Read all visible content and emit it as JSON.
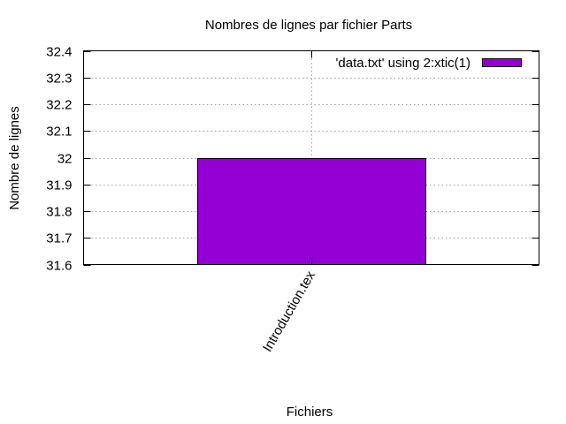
{
  "chart_data": {
    "type": "bar",
    "title": "Nombres de lignes par fichier Parts",
    "xlabel": "Fichiers",
    "ylabel": "Nombre de lignes",
    "categories": [
      "Introduction.tex"
    ],
    "series": [
      {
        "name": "'data.txt' using 2:xtic(1)",
        "values": [
          32
        ],
        "color": "#9400d3"
      }
    ],
    "ylim": [
      31.6,
      32.4
    ],
    "yticks": [
      "31.6",
      "31.7",
      "31.8",
      "31.9",
      "32",
      "32.1",
      "32.2",
      "32.3",
      "32.4"
    ],
    "grid": true,
    "legend_position": "top-right",
    "xtick_rotation": -60
  }
}
